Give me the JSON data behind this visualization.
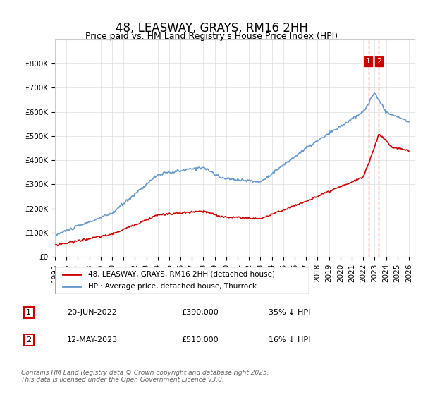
{
  "title": "48, LEASWAY, GRAYS, RM16 2HH",
  "subtitle": "Price paid vs. HM Land Registry's House Price Index (HPI)",
  "legend_entry1": "48, LEASWAY, GRAYS, RM16 2HH (detached house)",
  "legend_entry2": "HPI: Average price, detached house, Thurrock",
  "annotation1_date": "20-JUN-2022",
  "annotation1_price": "£390,000",
  "annotation1_hpi": "35% ↓ HPI",
  "annotation2_date": "12-MAY-2023",
  "annotation2_price": "£510,000",
  "annotation2_hpi": "16% ↓ HPI",
  "footer": "Contains HM Land Registry data © Crown copyright and database right 2025.\nThis data is licensed under the Open Government Licence v3.0.",
  "hpi_color": "#6699cc",
  "price_color": "#cc0000",
  "vline_color": "#ff6666",
  "annotation_box_color": "#cc0000",
  "ylim": [
    0,
    850000
  ],
  "yticks": [
    0,
    100000,
    200000,
    300000,
    400000,
    500000,
    600000,
    700000,
    800000
  ],
  "xstart": 1995.0,
  "xend": 2026.5
}
